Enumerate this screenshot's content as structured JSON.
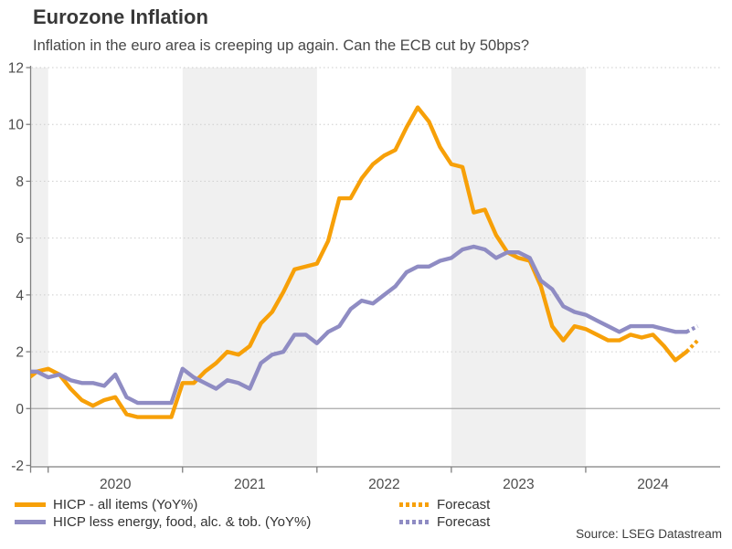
{
  "header": {
    "title": "Eurozone Inflation",
    "subtitle": "Inflation in the euro area is creeping up again. Can the ECB cut by 50bps?"
  },
  "chart_data": {
    "type": "line",
    "title": "Eurozone Inflation",
    "x_unit": "month",
    "x_start": "2019-11",
    "x_end": "2025-01",
    "ylim": [
      -2,
      12
    ],
    "yticks": [
      12,
      10,
      8,
      6,
      4,
      2,
      0,
      -2
    ],
    "grid": "dotted horizontal gridlines, solid zero line",
    "year_labels": [
      "2020",
      "2021",
      "2022",
      "2023",
      "2024"
    ],
    "shaded_spans": [
      [
        "2019-11",
        "2020-01"
      ],
      [
        "2021-01",
        "2022-01"
      ],
      [
        "2023-01",
        "2024-01"
      ]
    ],
    "band_color": "#f0f0f0",
    "series": [
      {
        "name": "HICP - all items (YoY%)",
        "color": "#F7A008",
        "style": "solid",
        "start": "2019-11",
        "values": [
          1.0,
          1.3,
          1.4,
          1.2,
          0.7,
          0.3,
          0.1,
          0.3,
          0.4,
          -0.2,
          -0.3,
          -0.3,
          -0.3,
          -0.3,
          0.9,
          0.9,
          1.3,
          1.6,
          2.0,
          1.9,
          2.2,
          3.0,
          3.4,
          4.1,
          4.9,
          5.0,
          5.1,
          5.9,
          7.4,
          7.4,
          8.1,
          8.6,
          8.9,
          9.1,
          9.9,
          10.6,
          10.1,
          9.2,
          8.6,
          8.5,
          6.9,
          7.0,
          6.1,
          5.5,
          5.3,
          5.2,
          4.3,
          2.9,
          2.4,
          2.9,
          2.8,
          2.6,
          2.4,
          2.4,
          2.6,
          2.5,
          2.6,
          2.2,
          1.7,
          2.0
        ]
      },
      {
        "name": "HICP less energy, food, alc. & tob. (YoY%)",
        "color": "#8F8CC3",
        "style": "solid",
        "start": "2019-11",
        "values": [
          1.3,
          1.3,
          1.1,
          1.2,
          1.0,
          0.9,
          0.9,
          0.8,
          1.2,
          0.4,
          0.2,
          0.2,
          0.2,
          0.2,
          1.4,
          1.1,
          0.9,
          0.7,
          1.0,
          0.9,
          0.7,
          1.6,
          1.9,
          2.0,
          2.6,
          2.6,
          2.3,
          2.7,
          2.9,
          3.5,
          3.8,
          3.7,
          4.0,
          4.3,
          4.8,
          5.0,
          5.0,
          5.2,
          5.3,
          5.6,
          5.7,
          5.6,
          5.3,
          5.5,
          5.5,
          5.3,
          4.5,
          4.2,
          3.6,
          3.4,
          3.3,
          3.1,
          2.9,
          2.7,
          2.9,
          2.9,
          2.9,
          2.8,
          2.7,
          2.7
        ]
      },
      {
        "name": "Forecast",
        "color": "#F7A008",
        "style": "dotted",
        "start": "2024-10",
        "values": [
          2.0,
          2.4
        ]
      },
      {
        "name": "Forecast",
        "color": "#8F8CC3",
        "style": "dotted",
        "start": "2024-10",
        "values": [
          2.7,
          2.9
        ]
      }
    ]
  },
  "legend": {
    "items": [
      {
        "label": "HICP - all items (YoY%)",
        "color": "#F7A008",
        "style": "solid"
      },
      {
        "label": "HICP less energy, food, alc. & tob. (YoY%)",
        "color": "#8F8CC3",
        "style": "solid"
      },
      {
        "label": "Forecast",
        "color": "#F7A008",
        "style": "dotted"
      },
      {
        "label": "Forecast",
        "color": "#8F8CC3",
        "style": "dotted"
      }
    ]
  },
  "source": {
    "text": "Source: LSEG Datastream"
  }
}
